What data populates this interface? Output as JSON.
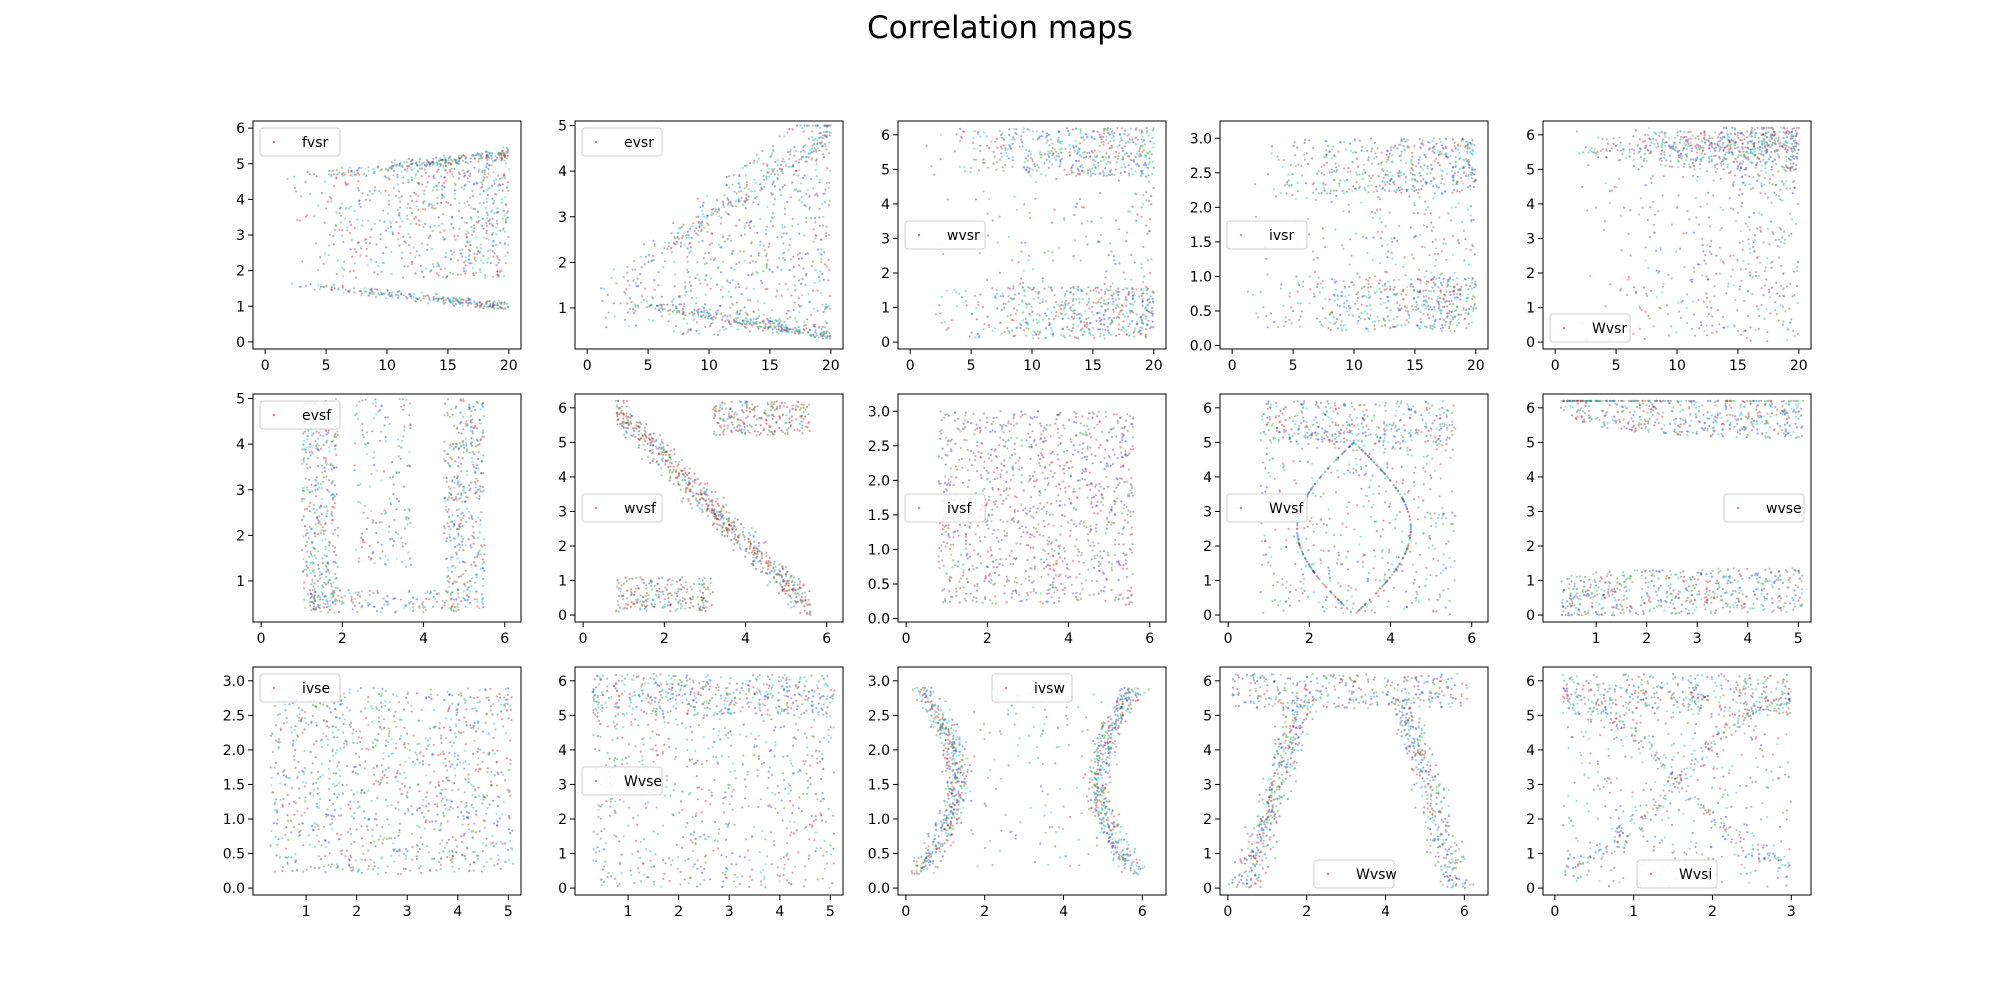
{
  "figure": {
    "title": "Correlation maps"
  },
  "series_colors": [
    "#1f3fd6",
    "#d62728",
    "#2ca02c",
    "#17becf",
    "#7b3fb0",
    "#1e88e5"
  ],
  "chart_data": [
    {
      "type": "scatter",
      "legend": "fvsr",
      "legend_loc": "upper-left",
      "xlim": [
        -1,
        21
      ],
      "ylim": [
        -0.2,
        6.2
      ],
      "xticks": [
        0,
        5,
        10,
        15,
        20
      ],
      "yticks": [
        0,
        1,
        2,
        3,
        4,
        5,
        6
      ],
      "pattern": "fvsr",
      "colors": [
        "#d62728",
        "#2ca02c",
        "#1f3fd6",
        "#17becf"
      ]
    },
    {
      "type": "scatter",
      "legend": "evsr",
      "legend_loc": "upper-left",
      "xlim": [
        -1,
        21
      ],
      "ylim": [
        0.1,
        5.1
      ],
      "xticks": [
        0,
        5,
        10,
        15,
        20
      ],
      "yticks": [
        1,
        2,
        3,
        4,
        5
      ],
      "pattern": "evsr",
      "colors": [
        "#d62728",
        "#2ca02c",
        "#1f3fd6",
        "#17becf"
      ]
    },
    {
      "type": "scatter",
      "legend": "wvsr",
      "legend_loc": "center-left",
      "xlim": [
        -1,
        21
      ],
      "ylim": [
        -0.2,
        6.4
      ],
      "xticks": [
        0,
        5,
        10,
        15,
        20
      ],
      "yticks": [
        0,
        1,
        2,
        3,
        4,
        5,
        6
      ],
      "pattern": "wvsr",
      "colors": [
        "#1f3fd6",
        "#d62728",
        "#2ca02c",
        "#17becf"
      ]
    },
    {
      "type": "scatter",
      "legend": "ivsr",
      "legend_loc": "center-left",
      "xlim": [
        -1,
        21
      ],
      "ylim": [
        -0.05,
        3.25
      ],
      "xticks": [
        0,
        5,
        10,
        15,
        20
      ],
      "yticks": [
        0.0,
        0.5,
        1.0,
        1.5,
        2.0,
        2.5,
        3.0
      ],
      "pattern": "ivsr",
      "colors": [
        "#2ca02c",
        "#d62728",
        "#1f3fd6",
        "#17becf"
      ]
    },
    {
      "type": "scatter",
      "legend": "Wvsr",
      "legend_loc": "lower-left",
      "xlim": [
        -1,
        21
      ],
      "ylim": [
        -0.2,
        6.4
      ],
      "xticks": [
        0,
        5,
        10,
        15,
        20
      ],
      "yticks": [
        0,
        1,
        2,
        3,
        4,
        5,
        6
      ],
      "pattern": "Wvsr",
      "colors": [
        "#d62728",
        "#2ca02c",
        "#1f3fd6",
        "#17becf",
        "#7b3fb0"
      ]
    },
    {
      "type": "scatter",
      "legend": "evsf",
      "legend_loc": "upper-left",
      "xlim": [
        -0.2,
        6.4
      ],
      "ylim": [
        0.1,
        5.1
      ],
      "xticks": [
        0,
        2,
        4,
        6
      ],
      "yticks": [
        1,
        2,
        3,
        4,
        5
      ],
      "pattern": "evsf",
      "colors": [
        "#d62728",
        "#2ca02c",
        "#1f3fd6",
        "#17becf"
      ]
    },
    {
      "type": "scatter",
      "legend": "wvsf",
      "legend_loc": "center-left",
      "xlim": [
        -0.2,
        6.4
      ],
      "ylim": [
        -0.2,
        6.4
      ],
      "xticks": [
        0,
        2,
        4,
        6
      ],
      "yticks": [
        0,
        1,
        2,
        3,
        4,
        5,
        6
      ],
      "pattern": "wvsf",
      "colors": [
        "#d62728",
        "#2ca02c",
        "#1e88e5",
        "#8b1a1a"
      ]
    },
    {
      "type": "scatter",
      "legend": "ivsf",
      "legend_loc": "center-left",
      "xlim": [
        -0.2,
        6.4
      ],
      "ylim": [
        -0.05,
        3.25
      ],
      "xticks": [
        0,
        2,
        4,
        6
      ],
      "yticks": [
        0.0,
        0.5,
        1.0,
        1.5,
        2.0,
        2.5,
        3.0
      ],
      "pattern": "ivsf",
      "colors": [
        "#2ca02c",
        "#d62728",
        "#7b3fb0",
        "#1f3fd6"
      ]
    },
    {
      "type": "scatter",
      "legend": "Wvsf",
      "legend_loc": "center-left",
      "xlim": [
        -0.2,
        6.4
      ],
      "ylim": [
        -0.2,
        6.4
      ],
      "xticks": [
        0,
        2,
        4,
        6
      ],
      "yticks": [
        0,
        1,
        2,
        3,
        4,
        5,
        6
      ],
      "pattern": "Wvsf",
      "colors": [
        "#d62728",
        "#2ca02c",
        "#1f3fd6",
        "#17becf"
      ]
    },
    {
      "type": "scatter",
      "legend": "wvse",
      "legend_loc": "center-right",
      "xlim": [
        -0.05,
        5.25
      ],
      "ylim": [
        -0.2,
        6.4
      ],
      "xticks": [
        1,
        2,
        3,
        4,
        5
      ],
      "yticks": [
        0,
        1,
        2,
        3,
        4,
        5,
        6
      ],
      "pattern": "wvse",
      "colors": [
        "#d62728",
        "#2ca02c",
        "#1f3fd6",
        "#17becf"
      ]
    },
    {
      "type": "scatter",
      "legend": "ivse",
      "legend_loc": "upper-left",
      "xlim": [
        -0.05,
        5.25
      ],
      "ylim": [
        -0.1,
        3.2
      ],
      "xticks": [
        1,
        2,
        3,
        4,
        5
      ],
      "yticks": [
        0.0,
        0.5,
        1.0,
        1.5,
        2.0,
        2.5,
        3.0
      ],
      "pattern": "ivse",
      "colors": [
        "#d62728",
        "#2ca02c",
        "#1f3fd6",
        "#17becf"
      ]
    },
    {
      "type": "scatter",
      "legend": "Wvse",
      "legend_loc": "center-left",
      "xlim": [
        -0.05,
        5.25
      ],
      "ylim": [
        -0.2,
        6.4
      ],
      "xticks": [
        1,
        2,
        3,
        4,
        5
      ],
      "yticks": [
        0,
        1,
        2,
        3,
        4,
        5,
        6
      ],
      "pattern": "Wvse",
      "colors": [
        "#d62728",
        "#2ca02c",
        "#1f3fd6",
        "#17becf"
      ]
    },
    {
      "type": "scatter",
      "legend": "ivsw",
      "legend_loc": "upper-center",
      "xlim": [
        -0.2,
        6.6
      ],
      "ylim": [
        -0.1,
        3.2
      ],
      "xticks": [
        0,
        2,
        4,
        6
      ],
      "yticks": [
        0.0,
        0.5,
        1.0,
        1.5,
        2.0,
        2.5,
        3.0
      ],
      "pattern": "ivsw",
      "colors": [
        "#d62728",
        "#2ca02c",
        "#1f3fd6",
        "#17becf"
      ]
    },
    {
      "type": "scatter",
      "legend": "Wvsw",
      "legend_loc": "lower-center",
      "xlim": [
        -0.2,
        6.6
      ],
      "ylim": [
        -0.2,
        6.4
      ],
      "xticks": [
        0,
        2,
        4,
        6
      ],
      "yticks": [
        0,
        1,
        2,
        3,
        4,
        5,
        6
      ],
      "pattern": "Wvsw",
      "colors": [
        "#d62728",
        "#2ca02c",
        "#1f3fd6",
        "#17becf"
      ]
    },
    {
      "type": "scatter",
      "legend": "Wvsi",
      "legend_loc": "lower-center",
      "xlim": [
        -0.15,
        3.25
      ],
      "ylim": [
        -0.2,
        6.4
      ],
      "xticks": [
        0,
        1,
        2,
        3
      ],
      "yticks": [
        0,
        1,
        2,
        3,
        4,
        5,
        6
      ],
      "pattern": "Wvsi",
      "colors": [
        "#d62728",
        "#2ca02c",
        "#1f3fd6",
        "#17becf"
      ]
    }
  ]
}
